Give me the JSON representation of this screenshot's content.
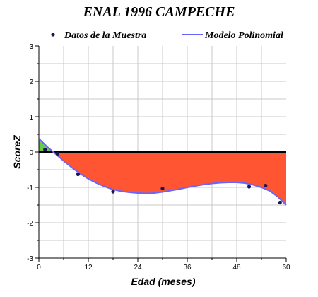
{
  "chart_data": {
    "type": "scatter",
    "title": "ENAL 1996 CAMPECHE",
    "xlabel": "Edad (meses)",
    "ylabel": "ScoreZ",
    "xlim": [
      0,
      60
    ],
    "ylim": [
      -3,
      3
    ],
    "x_ticks": [
      "0",
      "12",
      "24",
      "36",
      "48",
      "60"
    ],
    "y_ticks": [
      "3",
      "2",
      "1",
      "0",
      "-1",
      "-2",
      "-3"
    ],
    "grid": true,
    "legend_position": "top",
    "series": [
      {
        "name": "Datos de la Muestra",
        "kind": "points",
        "color": "#1a1a4d",
        "points": [
          {
            "x": 1.5,
            "y": 0.07
          },
          {
            "x": 4.5,
            "y": -0.05
          },
          {
            "x": 9.5,
            "y": -0.63
          },
          {
            "x": 18,
            "y": -1.12
          },
          {
            "x": 30,
            "y": -1.03
          },
          {
            "x": 51,
            "y": -0.98
          },
          {
            "x": 55,
            "y": -0.95
          },
          {
            "x": 58.5,
            "y": -1.43
          }
        ]
      },
      {
        "name": "Modelo Polinomial",
        "kind": "line",
        "color": "#6666ff",
        "points": [
          {
            "x": 0,
            "y": 0.38
          },
          {
            "x": 2,
            "y": 0.15
          },
          {
            "x": 4,
            "y": -0.05
          },
          {
            "x": 6,
            "y": -0.25
          },
          {
            "x": 8,
            "y": -0.44
          },
          {
            "x": 10,
            "y": -0.61
          },
          {
            "x": 12,
            "y": -0.76
          },
          {
            "x": 14,
            "y": -0.88
          },
          {
            "x": 16,
            "y": -0.98
          },
          {
            "x": 18,
            "y": -1.06
          },
          {
            "x": 20,
            "y": -1.11
          },
          {
            "x": 22,
            "y": -1.14
          },
          {
            "x": 24,
            "y": -1.16
          },
          {
            "x": 26,
            "y": -1.17
          },
          {
            "x": 28,
            "y": -1.16
          },
          {
            "x": 30,
            "y": -1.13
          },
          {
            "x": 32,
            "y": -1.09
          },
          {
            "x": 34,
            "y": -1.05
          },
          {
            "x": 36,
            "y": -1.0
          },
          {
            "x": 38,
            "y": -0.96
          },
          {
            "x": 40,
            "y": -0.92
          },
          {
            "x": 42,
            "y": -0.89
          },
          {
            "x": 44,
            "y": -0.87
          },
          {
            "x": 46,
            "y": -0.86
          },
          {
            "x": 48,
            "y": -0.86
          },
          {
            "x": 50,
            "y": -0.88
          },
          {
            "x": 52,
            "y": -0.93
          },
          {
            "x": 54,
            "y": -1.0
          },
          {
            "x": 56,
            "y": -1.1
          },
          {
            "x": 58,
            "y": -1.27
          },
          {
            "x": 60,
            "y": -1.5
          }
        ]
      }
    ],
    "fill_colors": {
      "above_zero": "#66cc44",
      "below_zero": "#ff5533"
    }
  }
}
